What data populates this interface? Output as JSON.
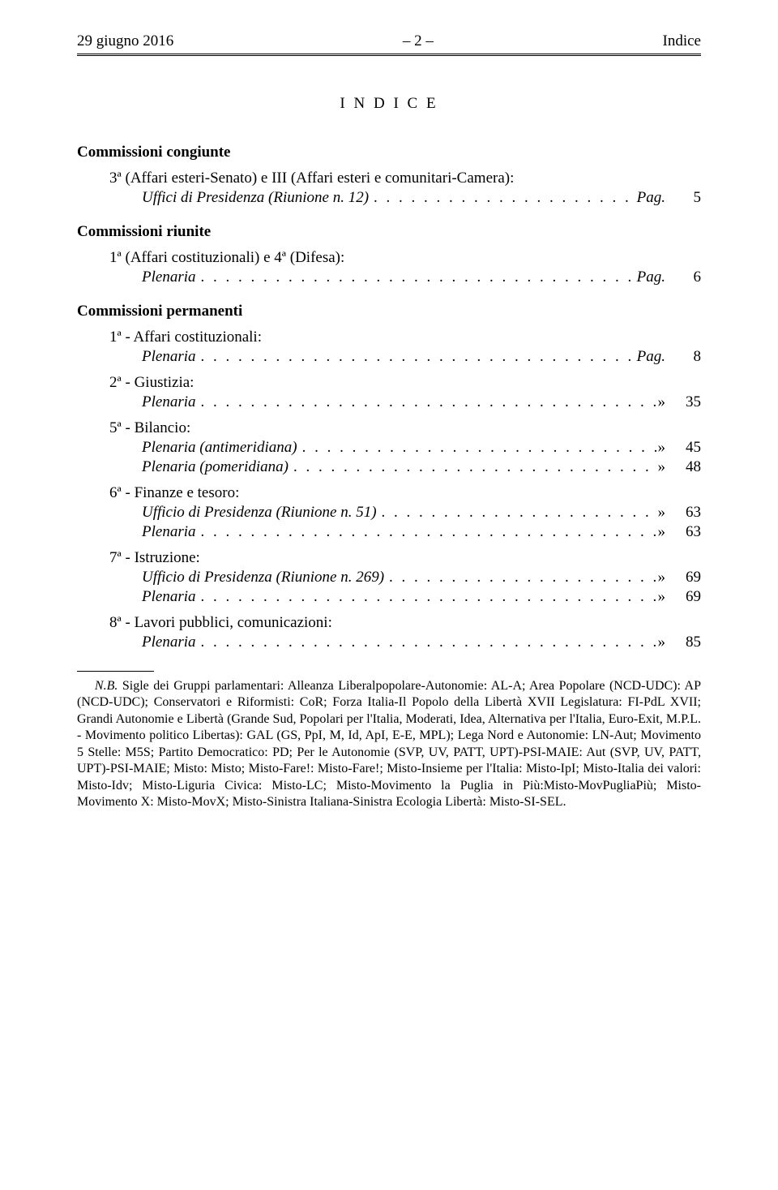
{
  "header": {
    "left": "29 giugno 2016",
    "center": "– 2 –",
    "right": "Indice"
  },
  "title_spaced": "I N D I C E",
  "sections": [
    {
      "heading": "Commissioni congiunte",
      "items": [
        {
          "sub": "3ª (Affari esteri-Senato) e III (Affari esteri e comunitari-Camera):",
          "lines": [
            {
              "label_italic": "Uffici di Presidenza (Riunione n. 12)",
              "ref_prefix": "Pag.",
              "page": "5"
            }
          ]
        }
      ]
    },
    {
      "heading": "Commissioni riunite",
      "items": [
        {
          "sub": "1ª (Affari costituzionali) e 4ª (Difesa):",
          "lines": [
            {
              "label_italic": "Plenaria",
              "ref_prefix": "Pag.",
              "page": "6"
            }
          ]
        }
      ]
    },
    {
      "heading": "Commissioni permanenti",
      "items": [
        {
          "sub": "1ª - Affari costituzionali:",
          "lines": [
            {
              "label_italic": "Plenaria",
              "ref_prefix": "Pag.",
              "page": "8"
            }
          ]
        },
        {
          "sub": "2ª - Giustizia:",
          "lines": [
            {
              "label_italic": "Plenaria",
              "ref_prefix": "»",
              "page": "35"
            }
          ]
        },
        {
          "sub": "5ª - Bilancio:",
          "lines": [
            {
              "label_italic": "Plenaria (antimeridiana)",
              "ref_prefix": "»",
              "page": "45"
            },
            {
              "label_italic": "Plenaria (pomeridiana)",
              "ref_prefix": "»",
              "page": "48"
            }
          ]
        },
        {
          "sub": "6ª - Finanze e tesoro:",
          "lines": [
            {
              "label_italic": "Ufficio di Presidenza (Riunione n. 51)",
              "ref_prefix": "»",
              "page": "63"
            },
            {
              "label_italic": "Plenaria",
              "ref_prefix": "»",
              "page": "63"
            }
          ]
        },
        {
          "sub": "7ª - Istruzione:",
          "lines": [
            {
              "label_italic": "Ufficio di Presidenza (Riunione n. 269)",
              "ref_prefix": "»",
              "page": "69"
            },
            {
              "label_italic": "Plenaria",
              "ref_prefix": "»",
              "page": "69"
            }
          ]
        },
        {
          "sub": "8ª - Lavori pubblici, comunicazioni:",
          "lines": [
            {
              "label_italic": "Plenaria",
              "ref_prefix": "»",
              "page": "85"
            }
          ]
        }
      ]
    }
  ],
  "footnote_lead": "N.B.",
  "footnote_body": " Sigle dei Gruppi parlamentari: Alleanza Liberalpopolare-Autonomie: AL-A; Area Popolare (NCD-UDC): AP (NCD-UDC); Conservatori e Riformisti: CoR; Forza Italia-Il Popolo della Libertà XVII Legislatura: FI-PdL XVII; Grandi Autonomie e Libertà (Grande Sud, Popolari per l'Italia, Moderati, Idea, Alternativa per l'Italia, Euro-Exit, M.P.L. - Movimento politico Libertas): GAL (GS, PpI, M, Id, ApI, E-E, MPL); Lega Nord e Autonomie: LN-Aut; Movimento 5 Stelle: M5S; Partito Democratico: PD; Per le Autonomie (SVP, UV, PATT, UPT)-PSI-MAIE: Aut (SVP, UV, PATT, UPT)-PSI-MAIE; Misto: Misto; Misto-Fare!: Misto-Fare!; Misto-Insieme per l'Italia: Misto-IpI; Misto-Italia dei valori: Misto-Idv; Misto-Liguria Civica: Misto-LC; Misto-Movimento la Puglia in Più:Misto-MovPugliaPiù; Misto-Movimento X: Misto-MovX; Misto-Sinistra Italiana-Sinistra Ecologia Libertà: Misto-SI-SEL."
}
